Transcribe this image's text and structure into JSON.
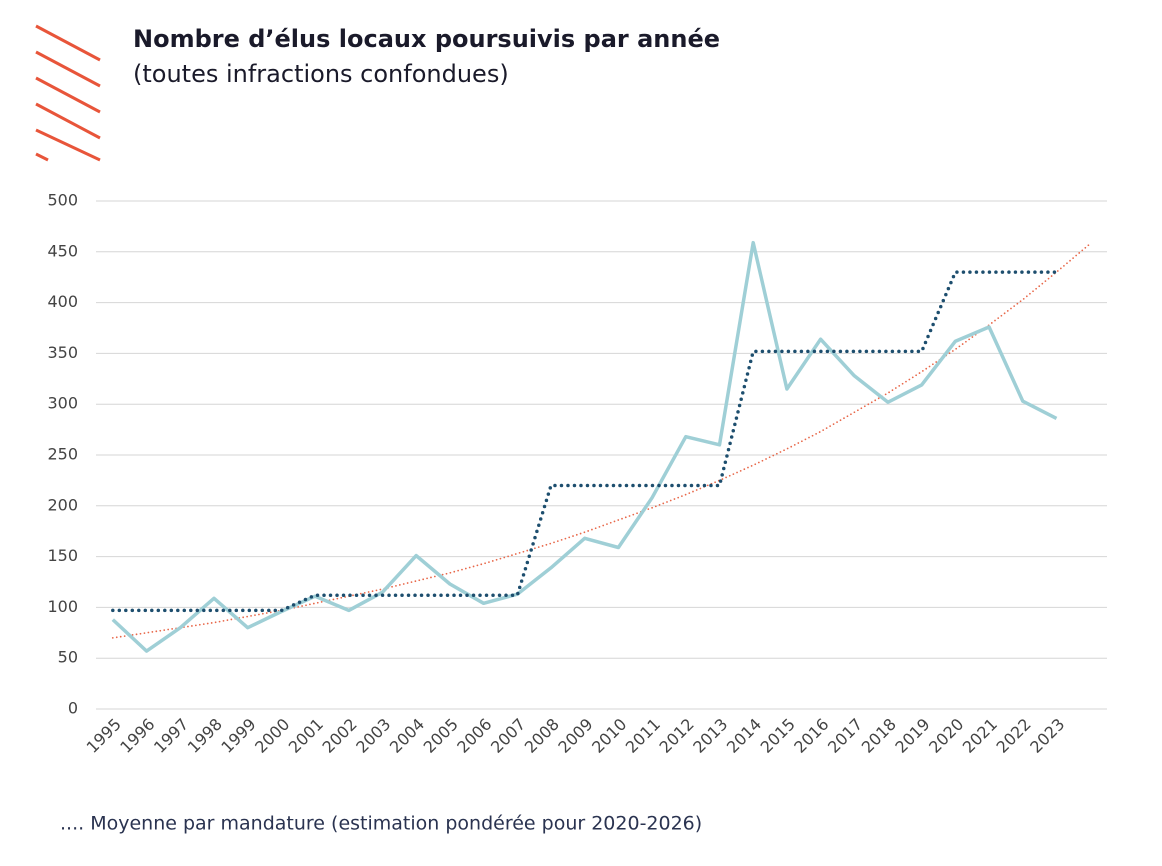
{
  "chart_data": {
    "type": "line",
    "title": "Nombre d’élus locaux poursuivis par année",
    "subtitle": "(toutes infractions confondues)",
    "note": ".... Moyenne par mandature (estimation pondérée pour 2020-2026)",
    "categories": [
      "1995",
      "1996",
      "1997",
      "1998",
      "1999",
      "2000",
      "2001",
      "2002",
      "2003",
      "2004",
      "2005",
      "2006",
      "2007",
      "2008",
      "2009",
      "2010",
      "2011",
      "2012",
      "2013",
      "2014",
      "2015",
      "2016",
      "2017",
      "2018",
      "2019",
      "2020",
      "2021",
      "2022",
      "2023",
      null
    ],
    "series": [
      {
        "color": "#9fcfd6",
        "style": "solid",
        "values": [
          88,
          57,
          80,
          109,
          80,
          96,
          111,
          97,
          115,
          151,
          123,
          104,
          113,
          139,
          168,
          159,
          208,
          268,
          260,
          459,
          315,
          364,
          328,
          302,
          319,
          362,
          376,
          303,
          286,
          null
        ]
      },
      {
        "color": "#1d4e6e",
        "style": "dotted",
        "values": [
          97,
          97,
          97,
          97,
          97,
          97,
          112,
          112,
          112,
          112,
          112,
          112,
          112,
          220,
          220,
          220,
          220,
          220,
          220,
          352,
          352,
          352,
          352,
          352,
          352,
          430,
          430,
          430,
          430,
          null
        ]
      },
      {
        "color": "#e8684a",
        "style": "trend",
        "values": [
          70,
          75,
          80,
          85,
          91,
          97,
          104,
          111,
          118,
          126,
          134,
          143,
          153,
          163,
          174,
          186,
          198,
          211,
          225,
          240,
          256,
          273,
          292,
          311,
          332,
          354,
          378,
          403,
          430,
          458
        ]
      }
    ],
    "ylim": [
      0,
      500
    ],
    "yticks": [
      0,
      50,
      100,
      150,
      200,
      250,
      300,
      350,
      400,
      450,
      500
    ],
    "grid": true
  }
}
